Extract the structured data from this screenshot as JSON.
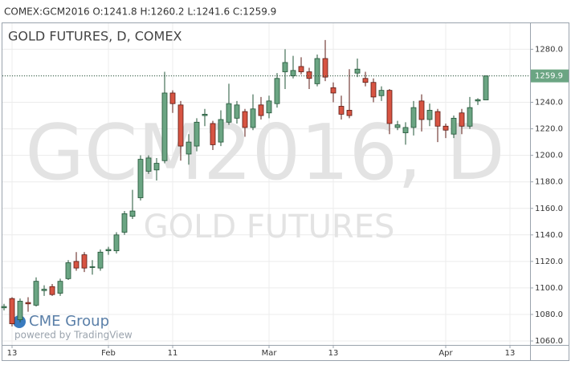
{
  "chart_data": {
    "type": "candlestick",
    "header": "COMEX:GCM2016 O:1241.8 H:1260.2 L:1241.6 C:1259.9",
    "title": "GOLD FUTURES, D, COMEX",
    "watermark": "GCM2016, D",
    "watermark_subtitle": "GOLD FUTURES",
    "brand": "CME Group",
    "brand_note": "powered by TradingView",
    "categories": [
      null,
      "13",
      null,
      null,
      null,
      null,
      null,
      null,
      null,
      null,
      null,
      null,
      null,
      "Feb",
      null,
      null,
      null,
      null,
      null,
      null,
      null,
      "11",
      null,
      null,
      null,
      null,
      null,
      null,
      null,
      null,
      null,
      null,
      null,
      "Mar",
      null,
      null,
      null,
      null,
      null,
      null,
      null,
      "13",
      null,
      null,
      null,
      null,
      null,
      null,
      null,
      null,
      null,
      null,
      null,
      null,
      null,
      "Apr",
      null,
      null,
      null,
      null,
      null,
      null,
      null,
      "13"
    ],
    "open": [
      1085,
      1092,
      1076,
      1089,
      1087,
      1098,
      1101,
      1096,
      1107,
      1120,
      1125,
      1116,
      1115,
      1128,
      1128,
      1142,
      1154,
      1168,
      1188,
      1189,
      1196,
      1247,
      1238,
      1201,
      1207,
      1230,
      1224,
      1210,
      1225,
      1228,
      1233,
      1221,
      1238,
      1232,
      1239,
      1263,
      1260,
      1267,
      1263,
      1254,
      1273,
      1251,
      1237,
      1234,
      1262,
      1258,
      1255,
      1245,
      1249,
      1221,
      1217,
      1221,
      1241,
      1227,
      1233,
      1222,
      1216,
      1232,
      1222,
      1241,
      1241.8,
      null,
      null,
      null
    ],
    "high": [
      1088,
      1093,
      1092,
      1093,
      1108,
      1102,
      1103,
      1107,
      1121,
      1127,
      1127,
      1121,
      1129,
      1131,
      1142,
      1158,
      1174,
      1200,
      1200,
      1198,
      1263,
      1249,
      1241,
      1216,
      1228,
      1235,
      1226,
      1234,
      1254,
      1241,
      1235,
      1246,
      1244,
      1245,
      1262,
      1280,
      1275,
      1274,
      1266,
      1276,
      1287,
      1255,
      1245,
      1265,
      1273,
      1263,
      1258,
      1252,
      1250,
      1226,
      1225,
      1241,
      1246,
      1239,
      1235,
      1224,
      1230,
      1235,
      1244,
      1243,
      1260.2,
      null,
      null,
      null
    ],
    "low": [
      1083,
      1071,
      1074,
      1082,
      1086,
      1094,
      1094,
      1094,
      1106,
      1113,
      1112,
      1110,
      1113,
      1125,
      1126,
      1140,
      1152,
      1166,
      1186,
      1181,
      1194,
      1232,
      1196,
      1193,
      1203,
      1222,
      1204,
      1207,
      1223,
      1224,
      1214,
      1219,
      1227,
      1228,
      1236,
      1250,
      1258,
      1261,
      1250,
      1252,
      1256,
      1240,
      1227,
      1228,
      1259,
      1252,
      1240,
      1241,
      1216,
      1219,
      1208,
      1215,
      1218,
      1222,
      1210,
      1213,
      1213,
      1216,
      1220,
      1238,
      1241.6,
      null,
      null,
      null
    ],
    "close": [
      1086,
      1073,
      1090,
      1088,
      1105,
      1099,
      1095,
      1105,
      1119,
      1115,
      1115,
      1116,
      1127,
      1129,
      1140,
      1156,
      1158,
      1197,
      1198,
      1194,
      1247,
      1239,
      1207,
      1210,
      1225,
      1231,
      1208,
      1227,
      1239,
      1238,
      1221,
      1235,
      1230,
      1241,
      1258,
      1270,
      1264,
      1263,
      1258,
      1273,
      1259,
      1247,
      1231,
      1230,
      1265,
      1255,
      1244,
      1249,
      1224,
      1223,
      1221,
      1236,
      1227,
      1234,
      1222,
      1219,
      1228,
      1222,
      1236,
      1242,
      1259.9,
      null,
      null,
      null
    ],
    "up_color": "#6ba583",
    "up_border": "#225437",
    "down_color": "#d75442",
    "down_border": "#5b1a13",
    "ylim": [
      1057,
      1299
    ],
    "yticks": [
      {
        "value": 1060,
        "label": "1060.0"
      },
      {
        "value": 1080,
        "label": "1080.0"
      },
      {
        "value": 1100,
        "label": "1100.0"
      },
      {
        "value": 1120,
        "label": "1120.0"
      },
      {
        "value": 1140,
        "label": "1140.0"
      },
      {
        "value": 1160,
        "label": "1160.0"
      },
      {
        "value": 1180,
        "label": "1180.0"
      },
      {
        "value": 1200,
        "label": "1200.0"
      },
      {
        "value": 1220,
        "label": "1220.0"
      },
      {
        "value": 1240,
        "label": "1240.0"
      },
      {
        "value": 1260,
        "label": "1260.0"
      },
      {
        "value": 1280,
        "label": "1280.0"
      }
    ],
    "grid": true
  }
}
